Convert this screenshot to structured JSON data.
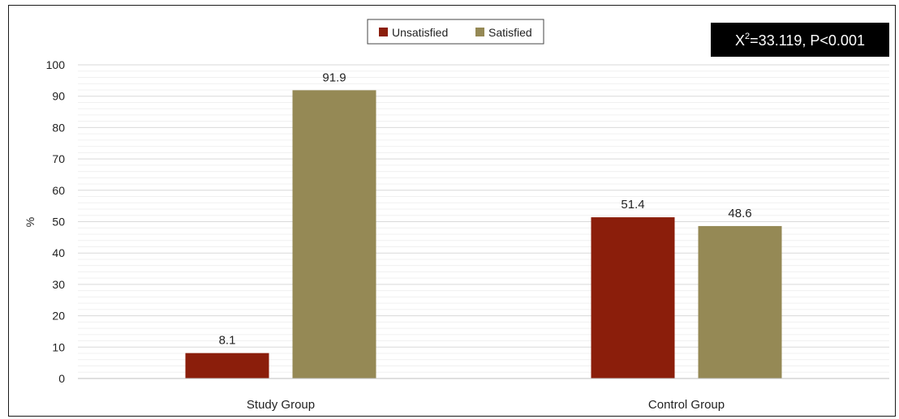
{
  "chart_data": {
    "type": "bar",
    "categories": [
      "Study Group",
      "Control Group"
    ],
    "series": [
      {
        "name": "Unsatisfied",
        "color": "#8b1e0b",
        "values": [
          8.1,
          51.4
        ]
      },
      {
        "name": "Satisfied",
        "color": "#958955",
        "values": [
          91.9,
          48.6
        ]
      }
    ],
    "data_labels": [
      [
        "8.1",
        "51.4"
      ],
      [
        "91.9",
        "48.6"
      ]
    ],
    "ylabel": "%",
    "ylim": [
      0,
      100
    ],
    "yticks": [
      "0",
      "10",
      "20",
      "30",
      "40",
      "50",
      "60",
      "70",
      "80",
      "90",
      "100"
    ],
    "grid": true,
    "legend_position": "top-center",
    "annotation": {
      "prefix": "X",
      "superscript": "2",
      "suffix": "=33.119, P<0.001",
      "background": "#000000"
    }
  }
}
